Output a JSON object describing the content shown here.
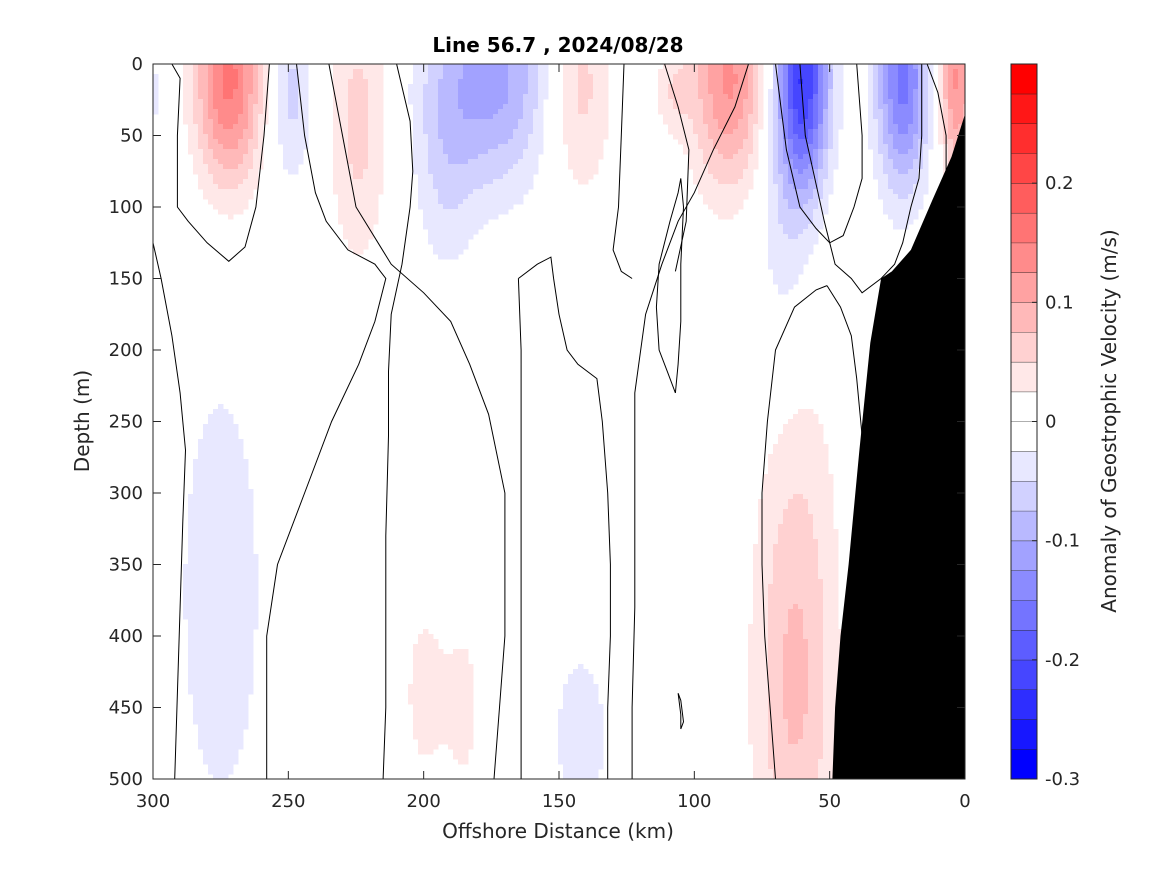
{
  "chart_data": {
    "type": "heatmap",
    "title": "Line 56.7 , 2024/08/28",
    "xlabel": "Offshore Distance (km)",
    "ylabel": "Depth (m)",
    "xlim": [
      300,
      0
    ],
    "ylim": [
      0,
      500
    ],
    "xticks": [
      300,
      250,
      200,
      150,
      100,
      50,
      0
    ],
    "yticks": [
      0,
      50,
      100,
      150,
      200,
      250,
      300,
      350,
      400,
      450,
      500
    ],
    "colorbar": {
      "label": "Anomaly of Geostrophic Velocity (m/s)",
      "range": [
        -0.3,
        0.3
      ],
      "step": 0.025,
      "ticks": [
        0.2,
        0.1,
        0,
        -0.1,
        -0.2,
        -0.3
      ],
      "neg_color": "#0000ff",
      "pos_color": "#ff0000"
    },
    "colors": {
      "zero_contour": "#000000",
      "bathymetry": "#000000"
    },
    "anomalies": [
      {
        "x": 272,
        "y": 10,
        "sx": 9,
        "sy": 55,
        "v": 0.16
      },
      {
        "x": 224,
        "y": 40,
        "sx": 8,
        "sy": 70,
        "v": 0.06
      },
      {
        "x": 143,
        "y": 15,
        "sx": 9,
        "sy": 55,
        "v": 0.07
      },
      {
        "x": 87,
        "y": 10,
        "sx": 10,
        "sy": 55,
        "v": 0.13
      },
      {
        "x": 108,
        "y": 20,
        "sx": 5,
        "sy": 20,
        "v": 0.04
      },
      {
        "x": 3,
        "y": 10,
        "sx": 5,
        "sy": 50,
        "v": 0.13
      },
      {
        "x": 299,
        "y": 20,
        "sx": 3,
        "sy": 25,
        "v": -0.03
      },
      {
        "x": 249,
        "y": 20,
        "sx": 6,
        "sy": 45,
        "v": -0.06
      },
      {
        "x": 175,
        "y": 10,
        "sx": 17,
        "sy": 55,
        "v": -0.11
      },
      {
        "x": 192,
        "y": 80,
        "sx": 8,
        "sy": 55,
        "v": -0.035
      },
      {
        "x": 60,
        "y": 10,
        "sx": 7,
        "sy": 55,
        "v": -0.22
      },
      {
        "x": 67,
        "y": 120,
        "sx": 8,
        "sy": 80,
        "v": -0.04
      },
      {
        "x": 23,
        "y": 10,
        "sx": 7,
        "sy": 55,
        "v": -0.16
      },
      {
        "x": 275,
        "y": 370,
        "sx": 16,
        "sy": 160,
        "v": -0.035
      },
      {
        "x": 142,
        "y": 470,
        "sx": 10,
        "sy": 60,
        "v": -0.035
      },
      {
        "x": 200,
        "y": 440,
        "sx": 6,
        "sy": 50,
        "v": 0.035
      },
      {
        "x": 185,
        "y": 450,
        "sx": 6,
        "sy": 60,
        "v": 0.03
      },
      {
        "x": 63,
        "y": 460,
        "sx": 11,
        "sy": 100,
        "v": 0.065
      },
      {
        "x": 62,
        "y": 310,
        "sx": 11,
        "sy": 110,
        "v": 0.035
      },
      {
        "x": 35,
        "y": 430,
        "sx": 3,
        "sy": 50,
        "v": 0.03
      }
    ],
    "bathymetry": [
      [
        0,
        35
      ],
      [
        5,
        65
      ],
      [
        12,
        95
      ],
      [
        20,
        130
      ],
      [
        27,
        145
      ],
      [
        31,
        150
      ],
      [
        35,
        195
      ],
      [
        39,
        270
      ],
      [
        43,
        350
      ],
      [
        46,
        400
      ],
      [
        48,
        450
      ],
      [
        49,
        500
      ]
    ],
    "zero_contours": [
      [
        [
          293,
          0
        ],
        [
          290,
          10
        ],
        [
          291,
          50
        ],
        [
          291,
          100
        ],
        [
          287,
          110
        ],
        [
          280,
          125
        ],
        [
          272,
          138
        ],
        [
          266,
          128
        ],
        [
          262,
          100
        ],
        [
          259,
          50
        ],
        [
          257,
          0
        ]
      ],
      [
        [
          300,
          125
        ],
        [
          297,
          150
        ],
        [
          293,
          190
        ],
        [
          290,
          230
        ],
        [
          288,
          270
        ],
        [
          289,
          320
        ],
        [
          290,
          380
        ],
        [
          291,
          440
        ],
        [
          292,
          500
        ]
      ],
      [
        [
          247,
          0
        ],
        [
          244,
          50
        ],
        [
          240,
          90
        ],
        [
          236,
          110
        ],
        [
          228,
          130
        ],
        [
          218,
          140
        ],
        [
          214,
          150
        ],
        [
          218,
          180
        ],
        [
          224,
          210
        ],
        [
          234,
          250
        ],
        [
          244,
          300
        ],
        [
          254,
          350
        ],
        [
          258,
          400
        ],
        [
          258,
          500
        ]
      ],
      [
        [
          235,
          0
        ],
        [
          230,
          50
        ],
        [
          225,
          100
        ],
        [
          212,
          140
        ],
        [
          200,
          160
        ],
        [
          190,
          180
        ],
        [
          183,
          210
        ],
        [
          176,
          245
        ],
        [
          170,
          300
        ],
        [
          170,
          400
        ],
        [
          172,
          450
        ],
        [
          174,
          500
        ]
      ],
      [
        [
          210,
          0
        ],
        [
          205,
          40
        ],
        [
          204,
          75
        ],
        [
          205,
          100
        ],
        [
          208,
          140
        ],
        [
          212,
          175
        ],
        [
          213,
          215
        ],
        [
          213,
          260
        ],
        [
          214,
          330
        ],
        [
          214,
          400
        ],
        [
          214,
          450
        ],
        [
          215,
          500
        ]
      ],
      [
        [
          80,
          0
        ],
        [
          85,
          30
        ],
        [
          93,
          60
        ],
        [
          100,
          90
        ],
        [
          106,
          110
        ],
        [
          112,
          140
        ],
        [
          118,
          175
        ],
        [
          122,
          230
        ],
        [
          122,
          300
        ],
        [
          122,
          380
        ],
        [
          123,
          450
        ],
        [
          123,
          500
        ]
      ],
      [
        [
          107,
          145
        ],
        [
          103,
          110
        ],
        [
          102,
          60
        ],
        [
          106,
          30
        ],
        [
          111,
          0
        ]
      ]
    ],
    "closed_contours": [
      [
        [
          165,
          150
        ],
        [
          158,
          140
        ],
        [
          153,
          135
        ],
        [
          152,
          150
        ],
        [
          150,
          175
        ],
        [
          147,
          200
        ],
        [
          143,
          210
        ],
        [
          136,
          220
        ],
        [
          134,
          250
        ],
        [
          132,
          300
        ],
        [
          131,
          350
        ],
        [
          131,
          400
        ],
        [
          132,
          450
        ],
        [
          132,
          500
        ],
        [
          164,
          500
        ],
        [
          164,
          400
        ],
        [
          164,
          300
        ],
        [
          164,
          250
        ],
        [
          164,
          200
        ],
        [
          165,
          150
        ]
      ],
      [
        [
          107,
          230
        ],
        [
          110,
          215
        ],
        [
          113,
          200
        ],
        [
          114,
          170
        ],
        [
          113,
          140
        ],
        [
          109,
          110
        ],
        [
          106,
          90
        ],
        [
          105,
          80
        ],
        [
          104,
          100
        ],
        [
          105,
          140
        ],
        [
          105,
          180
        ],
        [
          106,
          210
        ],
        [
          107,
          230
        ]
      ],
      [
        [
          51,
          155
        ],
        [
          46,
          170
        ],
        [
          42,
          190
        ],
        [
          40,
          220
        ],
        [
          38,
          260
        ],
        [
          36,
          300
        ],
        [
          35,
          340
        ],
        [
          34,
          360
        ],
        [
          37,
          380
        ],
        [
          39,
          400
        ],
        [
          40,
          420
        ],
        [
          42,
          440
        ],
        [
          44,
          460
        ],
        [
          45,
          480
        ],
        [
          45,
          500
        ],
        [
          70,
          500
        ],
        [
          72,
          450
        ],
        [
          74,
          400
        ],
        [
          75,
          350
        ],
        [
          75,
          300
        ],
        [
          73,
          250
        ],
        [
          70,
          200
        ],
        [
          63,
          170
        ],
        [
          55,
          158
        ],
        [
          51,
          155
        ]
      ],
      [
        [
          33,
          500
        ],
        [
          32,
          450
        ],
        [
          34,
          430
        ],
        [
          37,
          415
        ],
        [
          42,
          415
        ],
        [
          45,
          430
        ],
        [
          47,
          450
        ],
        [
          46,
          470
        ],
        [
          44,
          480
        ],
        [
          44,
          500
        ]
      ],
      [
        [
          106,
          440
        ],
        [
          105,
          455
        ],
        [
          105,
          465
        ],
        [
          104,
          460
        ],
        [
          105,
          445
        ],
        [
          106,
          440
        ]
      ]
    ],
    "upper_contours": [
      [
        [
          61,
          0
        ],
        [
          59,
          50
        ],
        [
          52,
          110
        ],
        [
          48,
          140
        ],
        [
          42,
          150
        ],
        [
          38,
          160
        ],
        [
          31,
          150
        ],
        [
          26,
          140
        ],
        [
          23,
          125
        ],
        [
          20,
          100
        ],
        [
          17,
          80
        ],
        [
          16,
          50
        ],
        [
          16,
          0
        ]
      ],
      [
        [
          40,
          0
        ],
        [
          38,
          50
        ],
        [
          38,
          80
        ],
        [
          41,
          100
        ],
        [
          45,
          120
        ],
        [
          50,
          125
        ],
        [
          55,
          115
        ],
        [
          61,
          100
        ],
        [
          66,
          60
        ],
        [
          68,
          30
        ],
        [
          70,
          0
        ]
      ],
      [
        [
          14,
          0
        ],
        [
          10,
          20
        ],
        [
          7,
          50
        ],
        [
          7,
          80
        ],
        [
          10,
          110
        ],
        [
          16,
          140
        ],
        [
          22,
          170
        ],
        [
          28,
          200
        ],
        [
          33,
          240
        ],
        [
          35,
          280
        ],
        [
          36,
          300
        ]
      ],
      [
        [
          126,
          0
        ],
        [
          127,
          50
        ],
        [
          128,
          100
        ],
        [
          130,
          130
        ],
        [
          127,
          145
        ],
        [
          123,
          150
        ]
      ]
    ]
  }
}
